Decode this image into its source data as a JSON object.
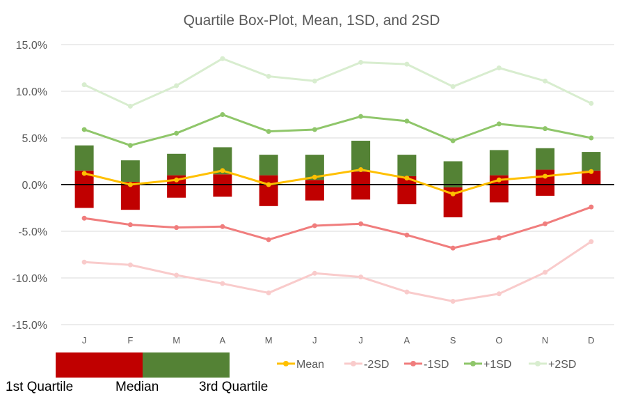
{
  "chart_data": {
    "type": "bar",
    "title": "Quartile Box-Plot, Mean, 1SD, and 2SD",
    "categories": [
      "J",
      "F",
      "M",
      "A",
      "M",
      "J",
      "J",
      "A",
      "S",
      "O",
      "N",
      "D"
    ],
    "y_ticks": [
      "15.0%",
      "10.0%",
      "5.0%",
      "0.0%",
      "-5.0%",
      "-10.0%",
      "-15.0%"
    ],
    "ylim": [
      -15,
      15
    ],
    "grid": true,
    "boxes": {
      "q1": [
        -2.5,
        -2.7,
        -1.4,
        -1.3,
        -2.3,
        -1.7,
        -1.6,
        -2.1,
        -3.5,
        -1.9,
        -1.2,
        0.0
      ],
      "median": [
        1.5,
        0.3,
        1.0,
        1.1,
        1.0,
        0.5,
        1.4,
        0.9,
        -0.3,
        1.0,
        1.6,
        1.5
      ],
      "q3": [
        4.2,
        2.6,
        3.3,
        4.0,
        3.2,
        3.2,
        4.7,
        3.2,
        2.5,
        3.7,
        3.9,
        3.5
      ]
    },
    "series": [
      {
        "name": "Mean",
        "color": "#FFC000",
        "values": [
          1.2,
          0.0,
          0.5,
          1.5,
          0.0,
          0.8,
          1.6,
          0.7,
          -1.0,
          0.5,
          0.9,
          1.4
        ]
      },
      {
        "name": "-2SD",
        "color": "#F9CBCB",
        "values": [
          -8.3,
          -8.6,
          -9.7,
          -10.6,
          -11.6,
          -9.5,
          -9.9,
          -11.5,
          -12.5,
          -11.7,
          -9.4,
          -6.1
        ]
      },
      {
        "name": "-1SD",
        "color": "#F07D7D",
        "values": [
          -3.6,
          -4.3,
          -4.6,
          -4.5,
          -5.9,
          -4.4,
          -4.2,
          -5.4,
          -6.8,
          -5.7,
          -4.2,
          -2.4
        ]
      },
      {
        "name": "+1SD",
        "color": "#8FC66A",
        "values": [
          5.9,
          4.2,
          5.5,
          7.5,
          5.7,
          5.9,
          7.3,
          6.8,
          4.7,
          6.5,
          6.0,
          5.0
        ]
      },
      {
        "name": "+2SD",
        "color": "#D8EDCF",
        "values": [
          10.7,
          8.4,
          10.6,
          13.5,
          11.6,
          11.1,
          13.1,
          12.9,
          10.5,
          12.5,
          11.1,
          8.7
        ]
      }
    ],
    "colors": {
      "lower_box": "#C00000",
      "upper_box": "#548235",
      "grid": "#D9D9D9",
      "zero_line": "#000000"
    }
  },
  "quartile_key": {
    "first": "1st Quartile",
    "median": "Median",
    "third": "3rd Quartile"
  }
}
